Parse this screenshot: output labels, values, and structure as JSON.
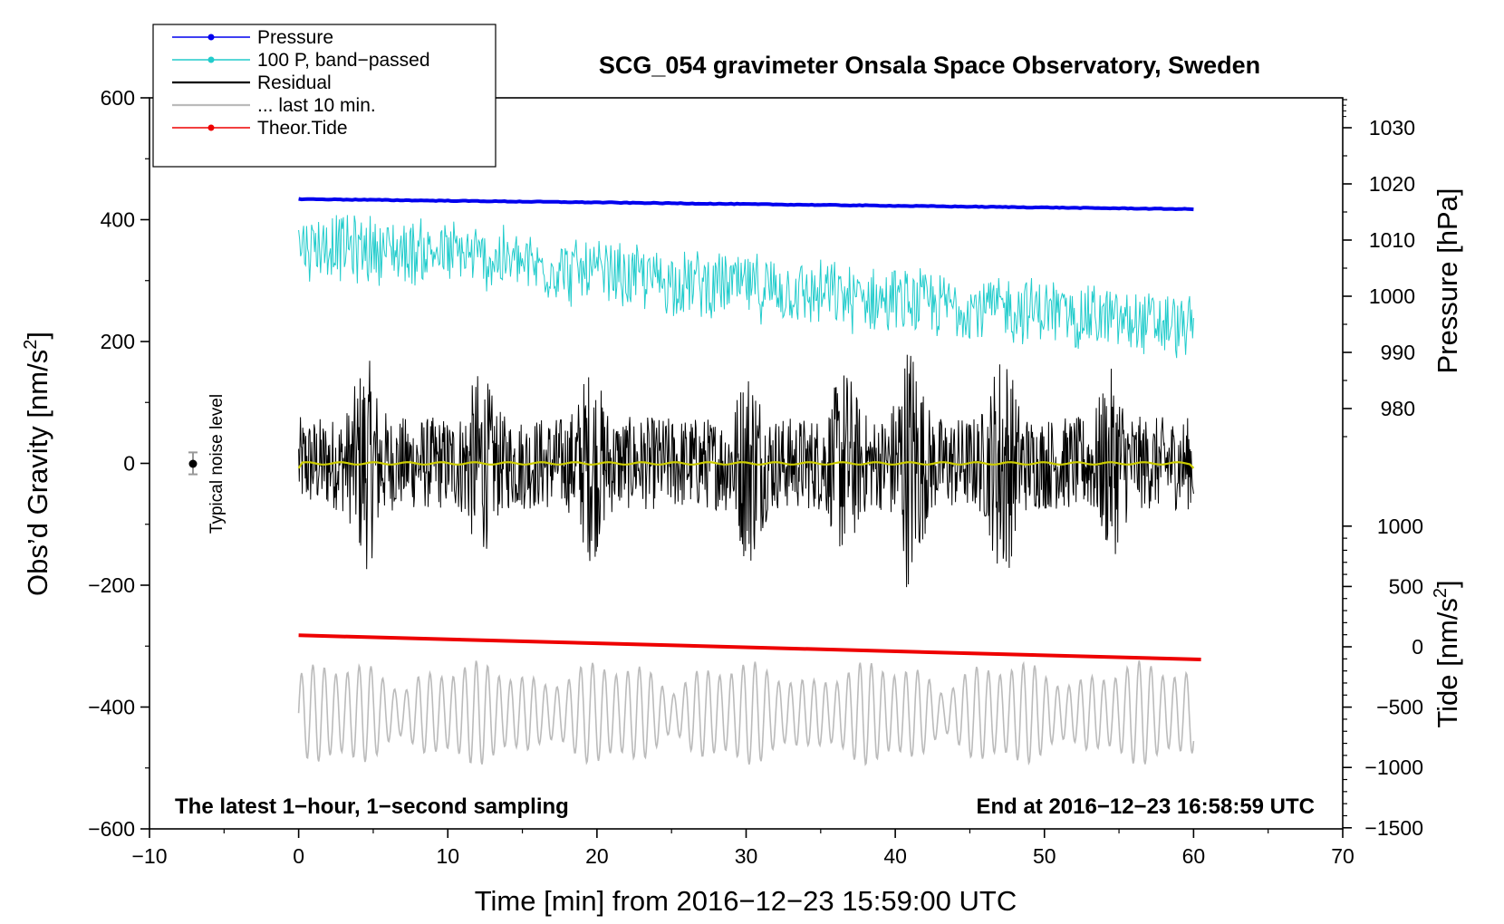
{
  "chart_data": {
    "type": "line",
    "title": "SCG_054 gravimeter Onsala Space Observatory, Sweden",
    "xlabel": "Time [min] from 2016−12−23 15:59:00 UTC",
    "ylabel_left": "Obs’d Gravity [nm/s",
    "ylabel_sup": "2",
    "ylabel_close": "]",
    "ylabel_pressure": "Pressure [hPa]",
    "ylabel_tide": "Tide [nm/s",
    "xlim": [
      -10,
      70
    ],
    "ylim_gravity": [
      -600,
      600
    ],
    "ylim_pressure_visible": [
      975,
      1035
    ],
    "ylim_tide": [
      -1500,
      1500
    ],
    "x_ticks": [
      "−10",
      "0",
      "10",
      "20",
      "30",
      "40",
      "50",
      "60",
      "70"
    ],
    "x_tick_values": [
      -10,
      0,
      10,
      20,
      30,
      40,
      50,
      60,
      70
    ],
    "gravity_ticks": [
      "600",
      "400",
      "200",
      "0",
      "−200",
      "−400",
      "−600"
    ],
    "gravity_tick_values": [
      600,
      400,
      200,
      0,
      -200,
      -400,
      -600
    ],
    "pressure_ticks": [
      "1030",
      "1020",
      "1010",
      "1000",
      "990",
      "980"
    ],
    "pressure_tick_values": [
      1030,
      1020,
      1010,
      1000,
      990,
      980
    ],
    "tide_ticks": [
      "1000",
      "500",
      "0",
      "−500",
      "−1000",
      "−1500"
    ],
    "tide_tick_values": [
      1000,
      500,
      0,
      -500,
      -1000,
      -1500
    ],
    "annotation_left": "The latest 1−hour, 1−second sampling",
    "annotation_right": "End at 2016−12−23 16:58:59 UTC",
    "noise_label": "Typical noise level",
    "noise_level_nm_s2": 18,
    "legend": [
      {
        "name": "Pressure",
        "color": "#0000ee",
        "marker": true
      },
      {
        "name": "100 P, band−passed",
        "color": "#22cccc",
        "marker": true
      },
      {
        "name": "Residual",
        "color": "#000000",
        "marker": false
      },
      {
        "name": "... last 10 min.",
        "color": "#bbbbbb",
        "marker": false
      },
      {
        "name": "Theor.Tide",
        "color": "#ee0000",
        "marker": true
      }
    ],
    "series": [
      {
        "name": "Pressure",
        "axis": "pressure",
        "x": [
          0,
          60
        ],
        "values": [
          1017.3,
          1015.5
        ],
        "color": "#0000ee"
      },
      {
        "name": "100 P, band−passed",
        "axis": "gravity",
        "x": [
          0,
          10,
          20,
          30,
          40,
          50,
          60
        ],
        "values": [
          360,
          345,
          310,
          290,
          265,
          250,
          220
        ],
        "color": "#22cccc",
        "amplitude": 45
      },
      {
        "name": "Residual",
        "axis": "gravity",
        "x": [
          0,
          60
        ],
        "values": [
          0,
          0
        ],
        "color": "#000000",
        "amplitude": 90
      },
      {
        "name": "... last 10 min.",
        "axis": "gravity",
        "x": [
          0,
          60
        ],
        "values": [
          -410,
          -410
        ],
        "color": "#bbbbbb",
        "amplitude": 75
      },
      {
        "name": "Residual smoothed",
        "axis": "gravity",
        "x": [
          0,
          60
        ],
        "values": [
          0,
          0
        ],
        "color": "#cccc00"
      },
      {
        "name": "Theor.Tide",
        "axis": "tide",
        "x": [
          0,
          60.5
        ],
        "values": [
          95,
          -105
        ],
        "color": "#ee0000"
      }
    ]
  }
}
